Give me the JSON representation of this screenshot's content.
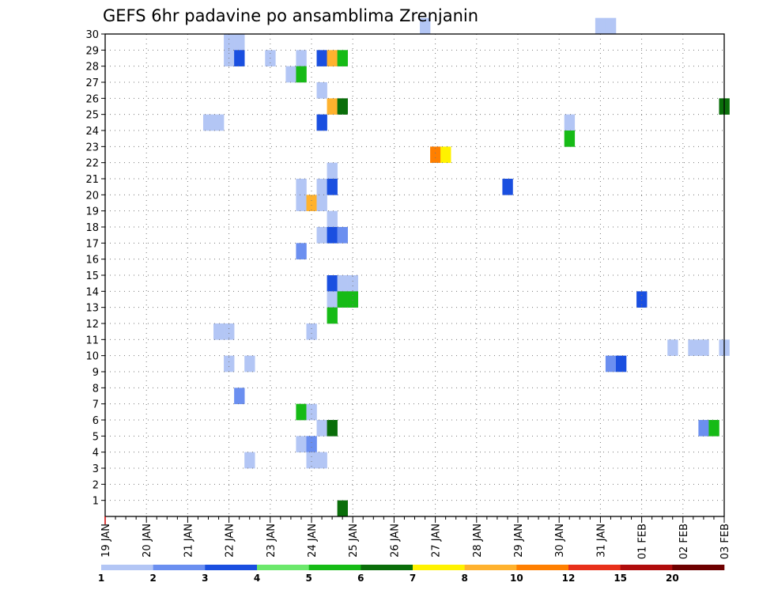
{
  "chart_data": {
    "type": "heatmap",
    "title": "GEFS 6hr padavine po ansamblima Zrenjanin",
    "xlabel": "",
    "ylabel": "",
    "x_ticks": [
      "19 JAN",
      "20 JAN",
      "21 JAN",
      "22 JAN",
      "23 JAN",
      "24 JAN",
      "25 JAN",
      "26 JAN",
      "27 JAN",
      "28 JAN",
      "29 JAN",
      "30 JAN",
      "31 JAN",
      "01 FEB",
      "02 FEB",
      "03 FEB"
    ],
    "x_range_steps": [
      0,
      60
    ],
    "x_step": "6hr",
    "y_ticks": [
      1,
      2,
      3,
      4,
      5,
      6,
      7,
      8,
      9,
      10,
      11,
      12,
      13,
      14,
      15,
      16,
      17,
      18,
      19,
      20,
      21,
      22,
      23,
      24,
      25,
      26,
      27,
      28,
      29,
      30
    ],
    "y_range": [
      0,
      30
    ],
    "grid": true,
    "colorbar": {
      "labels": [
        "1",
        "2",
        "3",
        "4",
        "5",
        "6",
        "7",
        "8",
        "10",
        "12",
        "15",
        "20"
      ],
      "colors": [
        "#b3c6f5",
        "#6b8ff0",
        "#1a4fe0",
        "#6ce86c",
        "#16bb16",
        "#0a6e0a",
        "#fff200",
        "#ffb22e",
        "#ff7f00",
        "#e8301a",
        "#b00c0c",
        "#6e0000"
      ]
    },
    "cells": [
      [
        31,
        30,
        1
      ],
      [
        48,
        30,
        1
      ],
      [
        49,
        30,
        1
      ],
      [
        12,
        29,
        1
      ],
      [
        13,
        29,
        1
      ],
      [
        12,
        28,
        1
      ],
      [
        13,
        28,
        3
      ],
      [
        16,
        28,
        1
      ],
      [
        19,
        28,
        1
      ],
      [
        21,
        28,
        3
      ],
      [
        22,
        28,
        8
      ],
      [
        23,
        28,
        5
      ],
      [
        18,
        27,
        1
      ],
      [
        19,
        27,
        5
      ],
      [
        21,
        26,
        1
      ],
      [
        22,
        25,
        8
      ],
      [
        23,
        25,
        6
      ],
      [
        60,
        25,
        6
      ],
      [
        10,
        24,
        1
      ],
      [
        11,
        24,
        1
      ],
      [
        21,
        24,
        3
      ],
      [
        45,
        24,
        1
      ],
      [
        45,
        23,
        5
      ],
      [
        32,
        22,
        9
      ],
      [
        33,
        22,
        7
      ],
      [
        22,
        21,
        1
      ],
      [
        19,
        20,
        1
      ],
      [
        21,
        20,
        1
      ],
      [
        22,
        20,
        3
      ],
      [
        39,
        20,
        3
      ],
      [
        19,
        19,
        1
      ],
      [
        20,
        19,
        8
      ],
      [
        21,
        19,
        1
      ],
      [
        22,
        18,
        1
      ],
      [
        21,
        17,
        1
      ],
      [
        22,
        17,
        3
      ],
      [
        23,
        17,
        2
      ],
      [
        19,
        16,
        2
      ],
      [
        22,
        14,
        3
      ],
      [
        23,
        14,
        1
      ],
      [
        24,
        14,
        1
      ],
      [
        22,
        13,
        1
      ],
      [
        23,
        13,
        5
      ],
      [
        24,
        13,
        5
      ],
      [
        52,
        13,
        3
      ],
      [
        22,
        12,
        5
      ],
      [
        11,
        11,
        1
      ],
      [
        12,
        11,
        1
      ],
      [
        20,
        11,
        1
      ],
      [
        55,
        10,
        1
      ],
      [
        57,
        10,
        1
      ],
      [
        58,
        10,
        1
      ],
      [
        60,
        10,
        1
      ],
      [
        12,
        9,
        1
      ],
      [
        14,
        9,
        1
      ],
      [
        49,
        9,
        2
      ],
      [
        50,
        9,
        3
      ],
      [
        13,
        7,
        2
      ],
      [
        19,
        6,
        5
      ],
      [
        20,
        6,
        1
      ],
      [
        21,
        5,
        1
      ],
      [
        22,
        5,
        6
      ],
      [
        58,
        5,
        2
      ],
      [
        59,
        5,
        5
      ],
      [
        19,
        4,
        1
      ],
      [
        20,
        4,
        2
      ],
      [
        14,
        3,
        1
      ],
      [
        20,
        3,
        1
      ],
      [
        21,
        3,
        1
      ],
      [
        23,
        0,
        6
      ]
    ]
  }
}
